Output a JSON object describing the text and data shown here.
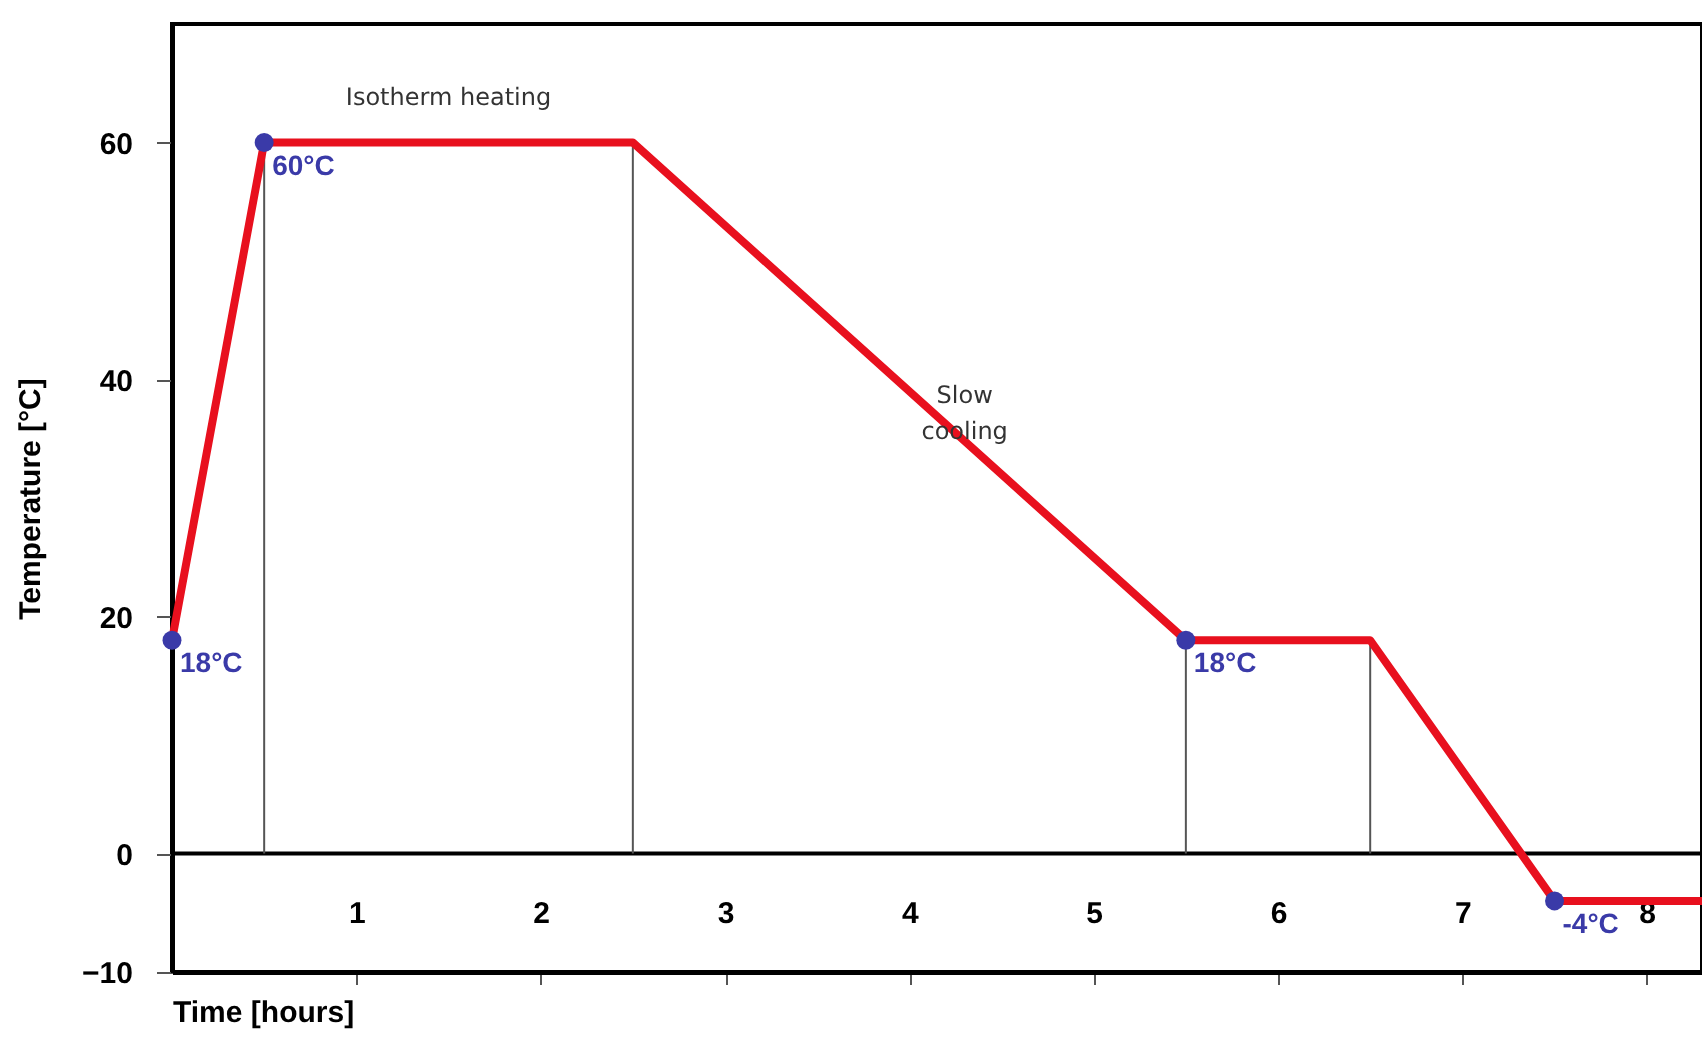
{
  "chart_data": {
    "type": "line",
    "xlabel": "Time [hours]",
    "ylabel": "Temperature [°C]",
    "xlim": [
      0,
      8.3
    ],
    "ylim": [
      -10,
      70
    ],
    "xticks": [
      1,
      2,
      3,
      4,
      5,
      6,
      7,
      8
    ],
    "yticks": [
      -10,
      0,
      20,
      40,
      60
    ],
    "series": [
      {
        "color": "#e8101e",
        "marker": "none",
        "x": [
          0,
          0.5,
          2.5,
          5.5,
          6.5,
          7.5,
          8.3
        ],
        "values": [
          18,
          60,
          60,
          18,
          18,
          -4,
          -4
        ]
      },
      {
        "type": "scatter",
        "color": "#3a3aa8",
        "marker": "circle",
        "x": [
          0,
          0.5,
          5.5,
          7.5
        ],
        "values": [
          18,
          60,
          18,
          -4
        ],
        "value_labels": [
          "18°C",
          "60°C",
          "18°C",
          "-4°C"
        ]
      }
    ],
    "ref_lines": [
      {
        "axis": "y",
        "value": 0,
        "color": "#000000"
      },
      {
        "axis": "x",
        "value": 0.5,
        "color": "#555555"
      },
      {
        "axis": "x",
        "value": 2.5,
        "color": "#555555"
      },
      {
        "axis": "x",
        "value": 5.5,
        "color": "#555555"
      },
      {
        "axis": "x",
        "value": 6.5,
        "color": "#555555"
      }
    ],
    "annotations": [
      {
        "text": "Isotherm heating",
        "x": 1.5,
        "y": 60
      },
      {
        "text": "Slow\ncooling",
        "x": 4.3,
        "y": 34.8
      }
    ]
  }
}
